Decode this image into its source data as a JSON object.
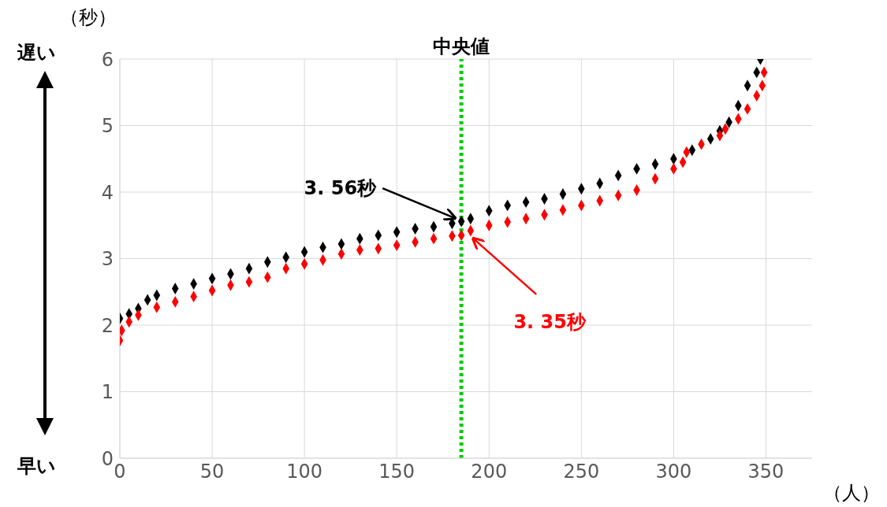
{
  "chart_data": {
    "type": "scatter",
    "xlabel": "（人）",
    "ylabel": "（秒）",
    "annotations": [
      "遅い",
      "早い",
      {
        "text": "3. 56秒",
        "x": 185,
        "y": 3.56
      },
      {
        "text": "3. 35秒",
        "x": 188,
        "y": 3.35
      }
    ],
    "series": [
      {
        "color": "#000000",
        "x": [
          0,
          5,
          10,
          15,
          20,
          30,
          40,
          50,
          60,
          70,
          80,
          90,
          100,
          110,
          120,
          130,
          140,
          150,
          160,
          170,
          180,
          185,
          190,
          200,
          210,
          220,
          230,
          240,
          250,
          260,
          270,
          280,
          290,
          300,
          310,
          320,
          325,
          330,
          335,
          340,
          345,
          347
        ],
        "values": [
          2.1,
          2.17,
          2.25,
          2.38,
          2.45,
          2.55,
          2.62,
          2.7,
          2.77,
          2.85,
          2.95,
          3.02,
          3.1,
          3.17,
          3.22,
          3.3,
          3.35,
          3.4,
          3.45,
          3.48,
          3.53,
          3.56,
          3.6,
          3.72,
          3.8,
          3.85,
          3.9,
          3.97,
          4.05,
          4.13,
          4.25,
          4.35,
          4.42,
          4.5,
          4.63,
          4.8,
          4.92,
          5.05,
          5.3,
          5.6,
          5.8,
          6.0
        ]
      },
      {
        "color": "#ff0000",
        "x": [
          0,
          1,
          5,
          10,
          20,
          30,
          40,
          50,
          60,
          70,
          80,
          90,
          100,
          110,
          120,
          130,
          140,
          150,
          160,
          170,
          180,
          185,
          190,
          200,
          210,
          220,
          230,
          240,
          250,
          260,
          270,
          280,
          290,
          300,
          305,
          307,
          315,
          325,
          328,
          335,
          340,
          345,
          348,
          349
        ],
        "values": [
          1.77,
          1.92,
          2.05,
          2.15,
          2.27,
          2.35,
          2.43,
          2.52,
          2.6,
          2.65,
          2.72,
          2.85,
          2.92,
          2.98,
          3.07,
          3.13,
          3.15,
          3.2,
          3.25,
          3.3,
          3.34,
          3.35,
          3.42,
          3.5,
          3.55,
          3.6,
          3.66,
          3.73,
          3.8,
          3.87,
          3.95,
          4.03,
          4.2,
          4.35,
          4.45,
          4.6,
          4.72,
          4.85,
          4.95,
          5.1,
          5.25,
          5.45,
          5.6,
          5.8
        ]
      }
    ],
    "xlim": [
      0,
      375
    ],
    "xticks": [
      0,
      50,
      100,
      150,
      200,
      250,
      300,
      350
    ],
    "ylim": [
      0,
      6
    ],
    "yticks": [
      0,
      1,
      2,
      3,
      4,
      5,
      6
    ],
    "grid": true,
    "marker": "diamond",
    "ref_lines": [
      {
        "axis": "x",
        "value": 185,
        "label": "中央値",
        "color": "#00cc00",
        "line_style": "dotted"
      }
    ]
  }
}
